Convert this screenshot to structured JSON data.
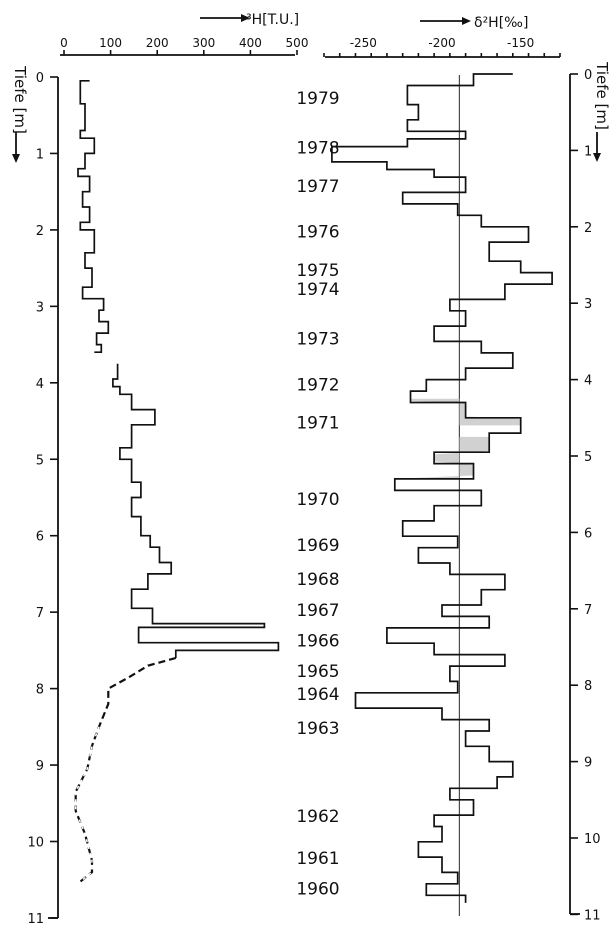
{
  "figure": {
    "depth_label_left": "Tiefe [m]",
    "depth_label_right": "Tiefe [m]"
  },
  "chart_data": [
    {
      "type": "line",
      "title": "",
      "xlabel": "³H[T.U.]",
      "ylabel": "Tiefe [m]",
      "xlim": [
        0,
        500
      ],
      "ylim": [
        0,
        11
      ],
      "y_inverted": true,
      "x_ticks": [
        "0",
        "100",
        "200",
        "300",
        "400",
        "500"
      ],
      "depth_ticks": [
        "0",
        "1",
        "2",
        "3",
        "4",
        "5",
        "6",
        "7",
        "8",
        "9",
        "10",
        "11"
      ],
      "series": [
        {
          "style": "solid-step",
          "points": [
            [
              55,
              0.05
            ],
            [
              35,
              0.05
            ],
            [
              35,
              0.35
            ],
            [
              45,
              0.35
            ],
            [
              45,
              0.7
            ],
            [
              35,
              0.7
            ],
            [
              35,
              0.8
            ],
            [
              65,
              0.8
            ],
            [
              65,
              1.0
            ],
            [
              45,
              1.0
            ],
            [
              45,
              1.2
            ],
            [
              30,
              1.2
            ],
            [
              30,
              1.3
            ],
            [
              55,
              1.3
            ],
            [
              55,
              1.5
            ],
            [
              40,
              1.5
            ],
            [
              40,
              1.7
            ],
            [
              55,
              1.7
            ],
            [
              55,
              1.9
            ],
            [
              35,
              1.9
            ],
            [
              35,
              2.0
            ],
            [
              65,
              2.0
            ],
            [
              65,
              2.3
            ],
            [
              45,
              2.3
            ],
            [
              45,
              2.5
            ],
            [
              60,
              2.5
            ],
            [
              60,
              2.75
            ],
            [
              40,
              2.75
            ],
            [
              40,
              2.9
            ],
            [
              85,
              2.9
            ],
            [
              85,
              3.05
            ],
            [
              75,
              3.05
            ],
            [
              75,
              3.2
            ],
            [
              95,
              3.2
            ],
            [
              95,
              3.35
            ],
            [
              70,
              3.35
            ],
            [
              70,
              3.5
            ],
            [
              80,
              3.5
            ],
            [
              80,
              3.6
            ],
            [
              65,
              3.6
            ]
          ]
        },
        {
          "style": "solid-step",
          "points": [
            [
              115,
              3.75
            ],
            [
              115,
              3.95
            ],
            [
              105,
              3.95
            ],
            [
              105,
              4.05
            ],
            [
              120,
              4.05
            ],
            [
              120,
              4.15
            ],
            [
              145,
              4.15
            ],
            [
              145,
              4.35
            ],
            [
              195,
              4.35
            ],
            [
              195,
              4.55
            ],
            [
              145,
              4.55
            ],
            [
              145,
              4.85
            ],
            [
              120,
              4.85
            ],
            [
              120,
              5.0
            ],
            [
              145,
              5.0
            ],
            [
              145,
              5.3
            ],
            [
              165,
              5.3
            ],
            [
              165,
              5.5
            ],
            [
              145,
              5.5
            ],
            [
              145,
              5.75
            ],
            [
              165,
              5.75
            ],
            [
              165,
              6.0
            ],
            [
              185,
              6.0
            ],
            [
              185,
              6.15
            ],
            [
              205,
              6.15
            ],
            [
              205,
              6.35
            ],
            [
              230,
              6.35
            ],
            [
              230,
              6.5
            ],
            [
              180,
              6.5
            ],
            [
              180,
              6.7
            ],
            [
              145,
              6.7
            ],
            [
              145,
              6.95
            ],
            [
              190,
              6.95
            ],
            [
              190,
              7.15
            ],
            [
              430,
              7.15
            ],
            [
              430,
              7.2
            ],
            [
              160,
              7.2
            ],
            [
              160,
              7.4
            ],
            [
              460,
              7.4
            ],
            [
              460,
              7.5
            ],
            [
              240,
              7.5
            ],
            [
              240,
              7.6
            ]
          ]
        },
        {
          "style": "dashed",
          "points": [
            [
              240,
              7.6
            ],
            [
              180,
              7.7
            ],
            [
              140,
              7.85
            ],
            [
              95,
              8.0
            ],
            [
              95,
              8.2
            ],
            [
              75,
              8.5
            ],
            [
              60,
              8.75
            ],
            [
              50,
              9.05
            ],
            [
              25,
              9.35
            ],
            [
              25,
              9.6
            ],
            [
              45,
              9.9
            ],
            [
              60,
              10.25
            ],
            [
              60,
              10.4
            ],
            [
              30,
              10.55
            ]
          ]
        }
      ]
    },
    {
      "type": "line",
      "title": "",
      "xlabel": "δ²H[‰]",
      "ylabel": "Tiefe [m]",
      "xlim": [
        -275,
        -125
      ],
      "ylim": [
        0,
        11
      ],
      "y_inverted": true,
      "x_ticks": [
        "-250",
        "-200",
        "-150"
      ],
      "reference_line_x": -189,
      "years": [
        {
          "label": "1979",
          "depth": 0.3
        },
        {
          "label": "1978",
          "depth": 0.95
        },
        {
          "label": "1977",
          "depth": 1.45
        },
        {
          "label": "1976",
          "depth": 2.05
        },
        {
          "label": "1975",
          "depth": 2.55
        },
        {
          "label": "1974",
          "depth": 2.8
        },
        {
          "label": "1973",
          "depth": 3.45
        },
        {
          "label": "1972",
          "depth": 4.05
        },
        {
          "label": "1971",
          "depth": 4.55
        },
        {
          "label": "1970",
          "depth": 5.55
        },
        {
          "label": "1969",
          "depth": 6.15
        },
        {
          "label": "1968",
          "depth": 6.6
        },
        {
          "label": "1967",
          "depth": 7.0
        },
        {
          "label": "1966",
          "depth": 7.4
        },
        {
          "label": "1965",
          "depth": 7.8
        },
        {
          "label": "1964",
          "depth": 8.1
        },
        {
          "label": "1963",
          "depth": 8.55
        },
        {
          "label": "1962",
          "depth": 9.7
        },
        {
          "label": "1961",
          "depth": 10.25
        },
        {
          "label": "1960",
          "depth": 10.65
        }
      ],
      "shaded_intervals": [
        {
          "from": 4.25,
          "to": 4.6,
          "side": "left"
        },
        {
          "from": 4.75,
          "to": 5.3,
          "side": "right"
        }
      ],
      "series": [
        {
          "style": "solid-step",
          "points": [
            [
              -155,
              0.0
            ],
            [
              -180,
              0.0
            ],
            [
              -180,
              0.15
            ],
            [
              -222,
              0.15
            ],
            [
              -222,
              0.4
            ],
            [
              -215,
              0.4
            ],
            [
              -215,
              0.6
            ],
            [
              -222,
              0.6
            ],
            [
              -222,
              0.75
            ],
            [
              -185,
              0.75
            ],
            [
              -185,
              0.85
            ],
            [
              -222,
              0.85
            ],
            [
              -222,
              0.95
            ],
            [
              -270,
              0.95
            ],
            [
              -270,
              1.15
            ],
            [
              -235,
              1.15
            ],
            [
              -235,
              1.25
            ],
            [
              -205,
              1.25
            ],
            [
              -205,
              1.35
            ],
            [
              -185,
              1.35
            ],
            [
              -185,
              1.55
            ],
            [
              -225,
              1.55
            ],
            [
              -225,
              1.7
            ],
            [
              -190,
              1.7
            ],
            [
              -190,
              1.85
            ],
            [
              -175,
              1.85
            ],
            [
              -175,
              2.0
            ],
            [
              -145,
              2.0
            ],
            [
              -145,
              2.2
            ],
            [
              -170,
              2.2
            ],
            [
              -170,
              2.45
            ],
            [
              -150,
              2.45
            ],
            [
              -150,
              2.6
            ],
            [
              -130,
              2.6
            ],
            [
              -130,
              2.75
            ],
            [
              -160,
              2.75
            ],
            [
              -160,
              2.95
            ],
            [
              -195,
              2.95
            ],
            [
              -195,
              3.1
            ],
            [
              -185,
              3.1
            ],
            [
              -185,
              3.3
            ],
            [
              -205,
              3.3
            ],
            [
              -205,
              3.5
            ],
            [
              -175,
              3.5
            ],
            [
              -175,
              3.65
            ],
            [
              -155,
              3.65
            ],
            [
              -155,
              3.85
            ],
            [
              -185,
              3.85
            ],
            [
              -185,
              4.0
            ],
            [
              -210,
              4.0
            ],
            [
              -210,
              4.15
            ],
            [
              -220,
              4.15
            ],
            [
              -220,
              4.3
            ],
            [
              -185,
              4.3
            ],
            [
              -185,
              4.5
            ],
            [
              -150,
              4.5
            ],
            [
              -150,
              4.7
            ],
            [
              -170,
              4.7
            ],
            [
              -170,
              4.95
            ],
            [
              -205,
              4.95
            ],
            [
              -205,
              5.1
            ],
            [
              -180,
              5.1
            ],
            [
              -180,
              5.3
            ],
            [
              -230,
              5.3
            ],
            [
              -230,
              5.45
            ],
            [
              -175,
              5.45
            ],
            [
              -175,
              5.65
            ],
            [
              -205,
              5.65
            ],
            [
              -205,
              5.85
            ],
            [
              -225,
              5.85
            ],
            [
              -225,
              6.05
            ],
            [
              -190,
              6.05
            ],
            [
              -190,
              6.2
            ],
            [
              -215,
              6.2
            ],
            [
              -215,
              6.4
            ],
            [
              -195,
              6.4
            ],
            [
              -195,
              6.55
            ],
            [
              -160,
              6.55
            ],
            [
              -160,
              6.75
            ],
            [
              -175,
              6.75
            ],
            [
              -175,
              6.95
            ],
            [
              -200,
              6.95
            ],
            [
              -200,
              7.1
            ],
            [
              -170,
              7.1
            ],
            [
              -170,
              7.25
            ],
            [
              -235,
              7.25
            ],
            [
              -235,
              7.45
            ],
            [
              -205,
              7.45
            ],
            [
              -205,
              7.6
            ],
            [
              -160,
              7.6
            ],
            [
              -160,
              7.75
            ],
            [
              -195,
              7.75
            ],
            [
              -195,
              7.95
            ],
            [
              -190,
              7.95
            ],
            [
              -190,
              8.1
            ],
            [
              -255,
              8.1
            ],
            [
              -255,
              8.3
            ],
            [
              -200,
              8.3
            ],
            [
              -200,
              8.45
            ],
            [
              -170,
              8.45
            ],
            [
              -170,
              8.6
            ],
            [
              -185,
              8.6
            ],
            [
              -185,
              8.8
            ],
            [
              -170,
              8.8
            ],
            [
              -170,
              9.0
            ],
            [
              -155,
              9.0
            ],
            [
              -155,
              9.2
            ],
            [
              -165,
              9.2
            ],
            [
              -165,
              9.35
            ],
            [
              -195,
              9.35
            ],
            [
              -195,
              9.5
            ],
            [
              -180,
              9.5
            ],
            [
              -180,
              9.7
            ],
            [
              -205,
              9.7
            ],
            [
              -205,
              9.85
            ],
            [
              -200,
              9.85
            ],
            [
              -200,
              10.05
            ],
            [
              -215,
              10.05
            ],
            [
              -215,
              10.25
            ],
            [
              -200,
              10.25
            ],
            [
              -200,
              10.45
            ],
            [
              -190,
              10.45
            ],
            [
              -190,
              10.6
            ],
            [
              -210,
              10.6
            ],
            [
              -210,
              10.75
            ],
            [
              -185,
              10.75
            ],
            [
              -185,
              10.85
            ]
          ]
        }
      ]
    }
  ]
}
